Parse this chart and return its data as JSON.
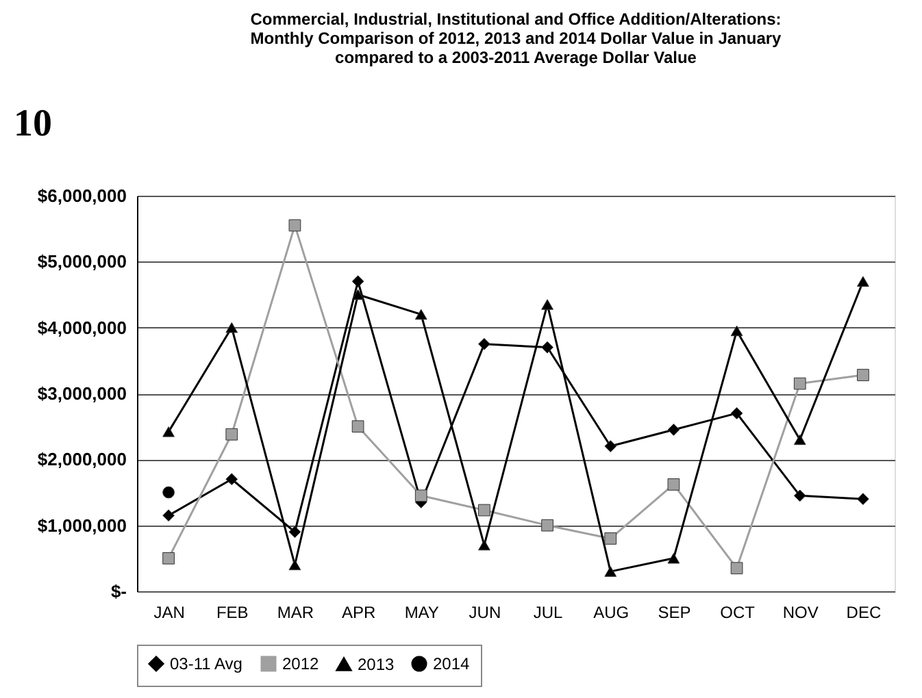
{
  "chart_data": {
    "type": "line",
    "title": [
      "Commercial, Industrial, Institutional and Office Addition/Alterations:",
      "Monthly Comparison of 2012, 2013 and 2014 Dollar Value in January",
      "compared to a 2003-2011 Average Dollar Value"
    ],
    "annotations": [
      "10"
    ],
    "categories": [
      "JAN",
      "FEB",
      "MAR",
      "APR",
      "MAY",
      "JUN",
      "JUL",
      "AUG",
      "SEP",
      "OCT",
      "NOV",
      "DEC"
    ],
    "series": [
      {
        "name": "03-11 Avg",
        "color": "#000000",
        "marker": "diamond",
        "values": [
          1150000,
          1700000,
          900000,
          4700000,
          1350000,
          3750000,
          3700000,
          2200000,
          2450000,
          2700000,
          1450000,
          1400000
        ]
      },
      {
        "name": "2012",
        "color": "#a0a0a0",
        "marker": "square",
        "values": [
          500000,
          2380000,
          5550000,
          2500000,
          1450000,
          1230000,
          1000000,
          800000,
          1620000,
          350000,
          3150000,
          3280000
        ]
      },
      {
        "name": "2013",
        "color": "#000000",
        "marker": "triangle",
        "values": [
          2420000,
          4000000,
          400000,
          4500000,
          4200000,
          700000,
          4350000,
          300000,
          500000,
          3950000,
          2300000,
          4700000
        ]
      },
      {
        "name": "2014",
        "color": "#000000",
        "marker": "circle",
        "values": [
          1500000,
          null,
          null,
          null,
          null,
          null,
          null,
          null,
          null,
          null,
          null,
          null
        ]
      }
    ],
    "ylim": [
      0,
      6000000
    ],
    "yticks": [
      {
        "value": 0,
        "label": "$-"
      },
      {
        "value": 1000000,
        "label": "$1,000,000"
      },
      {
        "value": 2000000,
        "label": "$2,000,000"
      },
      {
        "value": 3000000,
        "label": "$3,000,000"
      },
      {
        "value": 4000000,
        "label": "$4,000,000"
      },
      {
        "value": 5000000,
        "label": "$5,000,000"
      },
      {
        "value": 6000000,
        "label": "$6,000,000"
      }
    ],
    "grid": "y",
    "legend": "bottom",
    "line_style": "solid"
  }
}
